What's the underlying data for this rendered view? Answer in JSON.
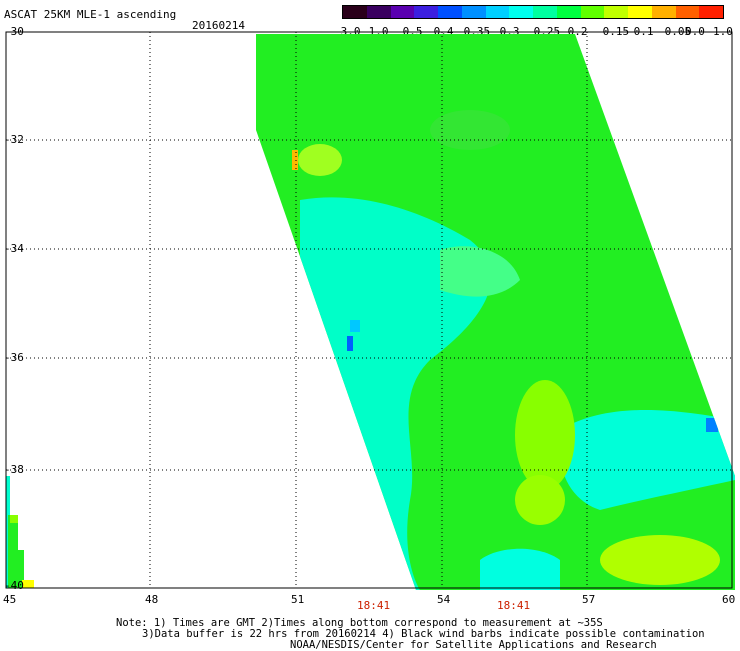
{
  "header": {
    "title": "ASCAT 25KM MLE-1 ascending",
    "date": "20160214"
  },
  "colorbar": {
    "ticks": [
      "-3.0",
      "-1.0",
      "-0.5",
      "-0.4",
      "-0.35",
      "-0.3",
      "-0.25",
      "-0.2",
      "-0.15",
      "-0.1",
      "-0.05",
      "0.0",
      "1.0"
    ],
    "colors": [
      "#2a001a",
      "#3a0060",
      "#5a00b0",
      "#3c1fe0",
      "#0050ff",
      "#0090ff",
      "#00d0ff",
      "#00ffee",
      "#00ffa0",
      "#00ff40",
      "#60ff00",
      "#c0ff00",
      "#ffff00",
      "#ffb000",
      "#ff6000",
      "#ff2000"
    ]
  },
  "axes": {
    "lat_labels": [
      "-30",
      "-32",
      "-34",
      "-36",
      "-38",
      "-40"
    ],
    "lon_labels": [
      "45",
      "48",
      "51",
      "54",
      "57",
      "60"
    ],
    "times": [
      "18:41",
      "18:41"
    ]
  },
  "notes": {
    "line1": "Note: 1) Times are GMT 2)Times along bottom correspond to measurement at ~35S",
    "line2": "3)Data buffer is 22 hrs from 20160214 4) Black wind barbs indicate possible contamination",
    "line3": "NOAA/NESDIS/Center for Satellite Applications and Research"
  },
  "colors": {
    "swath_main": "#22ee22",
    "swath_cyan": "#00ffd0",
    "swath_yellow": "#aaff00"
  }
}
